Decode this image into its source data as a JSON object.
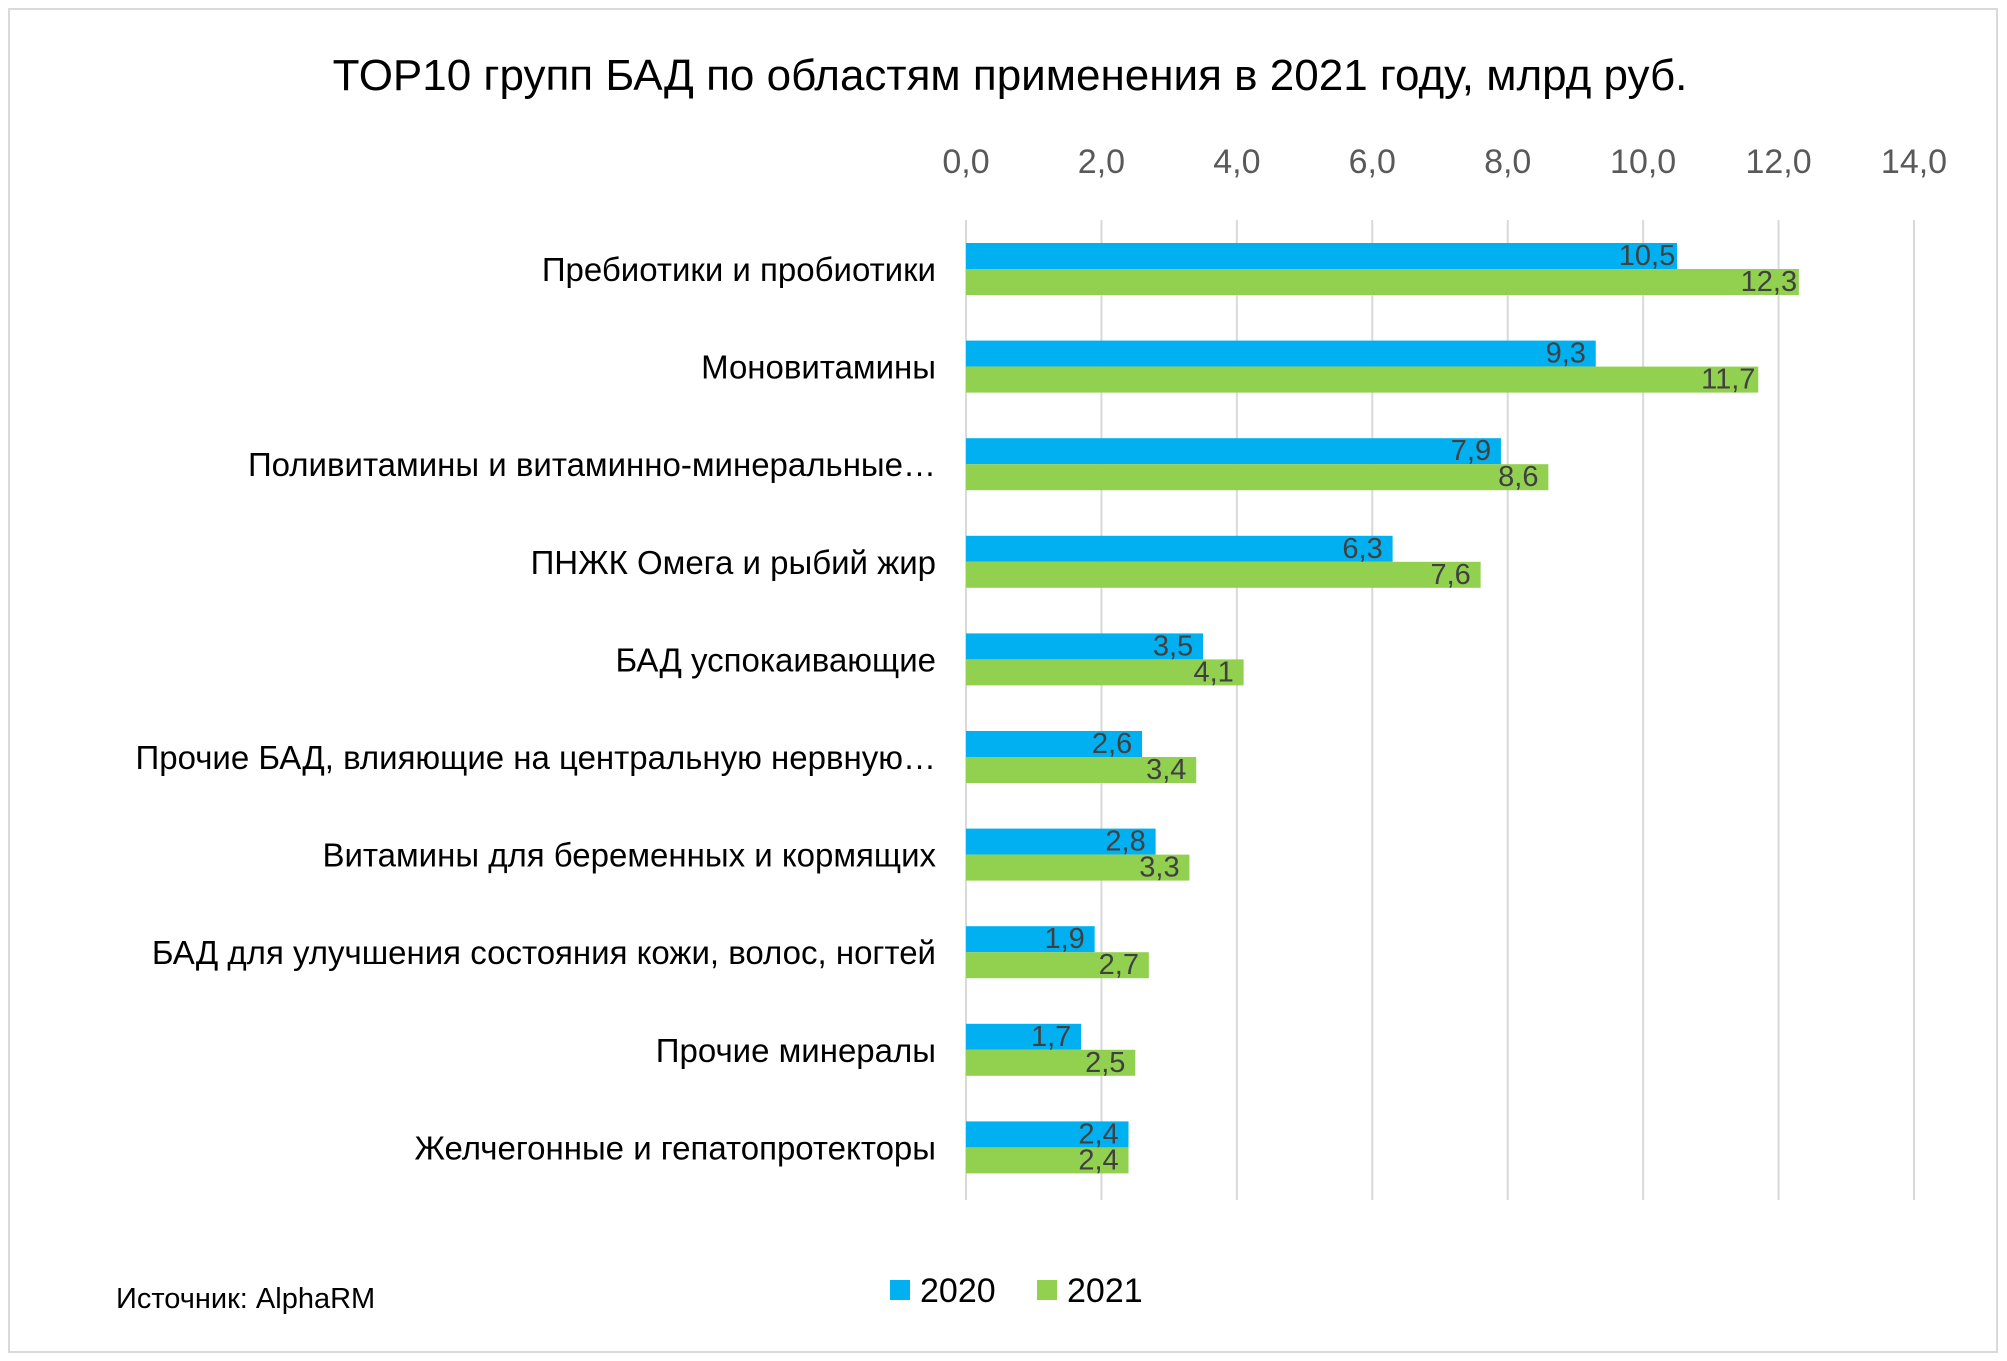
{
  "chart_data": {
    "type": "bar",
    "orientation": "horizontal",
    "title": "TOP10 групп БАД по областям применения в 2021 году, млрд руб.",
    "categories": [
      "Пребиотики и пробиотики",
      "Моновитамины",
      "Поливитамины и витаминно-минеральные…",
      "ПНЖК Омега и рыбий жир",
      "БАД успокаивающие",
      "Прочие БАД, влияющие на центральную нервную…",
      "Витамины для беременных и кормящих",
      "БАД для улучшения состояния кожи, волос, ногтей",
      "Прочие минералы",
      "Желчегонные и гепатопротекторы"
    ],
    "series": [
      {
        "name": "2020",
        "color": "#00b0f0",
        "values": [
          10.5,
          9.3,
          7.9,
          6.3,
          3.5,
          2.6,
          2.8,
          1.9,
          1.7,
          2.4
        ],
        "labels": [
          "10,5",
          "9,3",
          "7,9",
          "6,3",
          "3,5",
          "2,6",
          "2,8",
          "1,9",
          "1,7",
          "2,4"
        ]
      },
      {
        "name": "2021",
        "color": "#92d050",
        "values": [
          12.3,
          11.7,
          8.6,
          7.6,
          4.1,
          3.4,
          3.3,
          2.7,
          2.5,
          2.4
        ],
        "labels": [
          "12,3",
          "11,7",
          "8,6",
          "7,6",
          "4,1",
          "3,4",
          "3,3",
          "2,7",
          "2,5",
          "2,4"
        ]
      }
    ],
    "xlim": [
      0,
      14
    ],
    "x_ticks": [
      0,
      2,
      4,
      6,
      8,
      10,
      12,
      14
    ],
    "x_tick_labels": [
      "0,0",
      "2,0",
      "4,0",
      "6,0",
      "8,0",
      "10,0",
      "12,0",
      "14,0"
    ],
    "x_axis_position": "top",
    "grid": true,
    "gridline_color": "#d9d9d9",
    "legend_position": "bottom",
    "source": "Источник: AlphaRM"
  }
}
